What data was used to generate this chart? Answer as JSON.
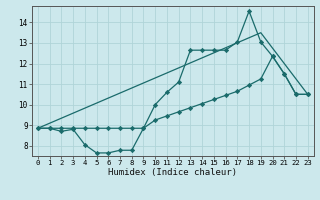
{
  "title": "",
  "xlabel": "Humidex (Indice chaleur)",
  "bg_color": "#cce8ec",
  "grid_color": "#b0d4d8",
  "line_color": "#1a6b6b",
  "xlim": [
    -0.5,
    23.5
  ],
  "ylim": [
    7.5,
    14.8
  ],
  "yticks": [
    8,
    9,
    10,
    11,
    12,
    13,
    14
  ],
  "xticks": [
    0,
    1,
    2,
    3,
    4,
    5,
    6,
    7,
    8,
    9,
    10,
    11,
    12,
    13,
    14,
    15,
    16,
    17,
    18,
    19,
    20,
    21,
    22,
    23
  ],
  "line1_x": [
    0,
    1,
    2,
    3,
    4,
    5,
    6,
    7,
    8,
    9,
    10,
    11,
    12,
    13,
    14,
    15,
    16,
    17,
    18,
    19,
    20,
    21,
    22,
    23
  ],
  "line1_y": [
    8.85,
    8.85,
    8.7,
    8.8,
    8.05,
    7.65,
    7.65,
    7.78,
    7.78,
    8.85,
    10.0,
    10.6,
    11.1,
    12.65,
    12.65,
    12.65,
    12.65,
    13.05,
    14.55,
    13.05,
    12.35,
    11.5,
    10.5,
    10.5
  ],
  "line2_x": [
    0,
    1,
    2,
    3,
    4,
    5,
    6,
    7,
    8,
    9,
    10,
    11,
    12,
    13,
    14,
    15,
    16,
    17,
    18,
    19,
    20,
    21,
    22,
    23
  ],
  "line2_y": [
    8.85,
    8.85,
    8.85,
    8.85,
    8.85,
    8.85,
    8.85,
    8.85,
    8.85,
    8.85,
    9.25,
    9.45,
    9.65,
    9.85,
    10.05,
    10.25,
    10.45,
    10.65,
    10.95,
    11.25,
    12.35,
    11.5,
    10.5,
    10.5
  ],
  "line3_x": [
    0,
    19,
    23
  ],
  "line3_y": [
    8.85,
    13.5,
    10.5
  ]
}
